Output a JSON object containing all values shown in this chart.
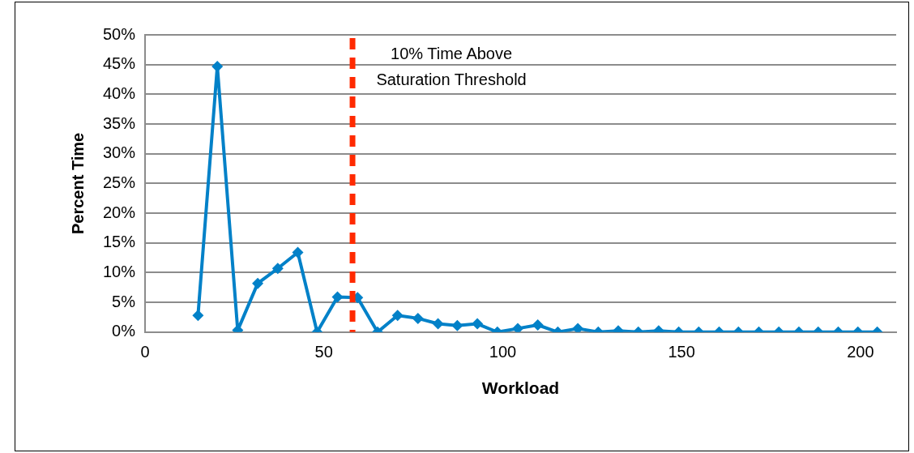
{
  "chart_data": {
    "type": "line",
    "xlabel": "Workload",
    "ylabel": "Percent Time",
    "series": [
      {
        "color": "#0281c8",
        "x": [
          14.8,
          20.2,
          25.9,
          31.5,
          37.1,
          42.7,
          48.1,
          53.8,
          59.4,
          65.0,
          70.6,
          76.3,
          81.9,
          87.3,
          92.9,
          98.5,
          104.2,
          109.8,
          115.4,
          121.0,
          126.7,
          132.3,
          137.9,
          143.6,
          149.2,
          154.8,
          160.5,
          165.9,
          171.6,
          177.2,
          182.8,
          188.2,
          193.8,
          199.3,
          204.7
        ],
        "values": [
          2.8,
          44.7,
          0.3,
          8.2,
          10.7,
          13.4,
          0,
          5.9,
          5.8,
          0,
          2.8,
          2.3,
          1.4,
          1.1,
          1.4,
          0,
          0.6,
          1.2,
          0,
          0.6,
          0,
          0.2,
          0,
          0.2,
          0,
          0,
          0,
          0,
          0,
          0,
          0,
          0,
          0,
          0,
          0
        ]
      }
    ],
    "xlim": [
      0,
      210
    ],
    "xticks": [
      0,
      50,
      100,
      150,
      200
    ],
    "ylim": [
      0,
      50
    ],
    "yticks": [
      {
        "value": 0,
        "label": "0%"
      },
      {
        "value": 5,
        "label": "5%"
      },
      {
        "value": 10,
        "label": "10%"
      },
      {
        "value": 15,
        "label": "15%"
      },
      {
        "value": 20,
        "label": "20%"
      },
      {
        "value": 25,
        "label": "25%"
      },
      {
        "value": 30,
        "label": "30%"
      },
      {
        "value": 35,
        "label": "35%"
      },
      {
        "value": 40,
        "label": "40%"
      },
      {
        "value": 45,
        "label": "45%"
      },
      {
        "value": 50,
        "label": "50%"
      }
    ],
    "grid": "y",
    "legend": false,
    "marker": "diamond",
    "line_style": "solid",
    "ref_lines": [
      {
        "axis": "x",
        "value": 58,
        "label": "10% Time Above Saturation Threshold",
        "color": "#ff2a00",
        "line_style": "dashed"
      }
    ]
  }
}
